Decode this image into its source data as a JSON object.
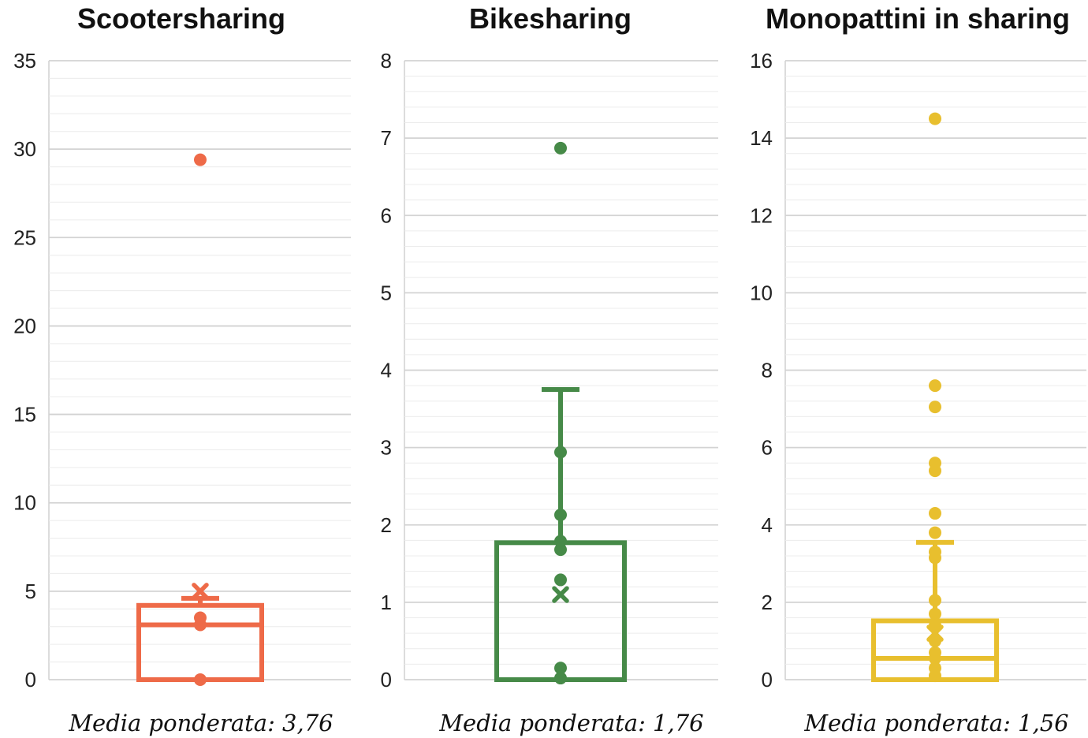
{
  "chart_data": [
    {
      "type": "box",
      "title": "Scootersharing",
      "color": "#ee6a48",
      "ylim": [
        0,
        35
      ],
      "ytick_step": 5,
      "yticks": [
        "0",
        "5",
        "10",
        "15",
        "20",
        "25",
        "30",
        "35"
      ],
      "box": {
        "min": 0,
        "q1": 0,
        "median": 3.1,
        "q3": 4.2,
        "max": 4.6,
        "mean": 5.0
      },
      "points": [
        29.4,
        3.5,
        3.1,
        0
      ],
      "caption": "Media ponderata: 3,76"
    },
    {
      "type": "box",
      "title": "Bikesharing",
      "color": "#468a48",
      "ylim": [
        0,
        8
      ],
      "ytick_step": 1,
      "yticks": [
        "0",
        "1",
        "2",
        "3",
        "4",
        "5",
        "6",
        "7",
        "8"
      ],
      "box": {
        "min": 0,
        "q1": 0,
        "median": 0,
        "q3": 1.77,
        "max": 3.75,
        "mean": 1.1
      },
      "points": [
        6.87,
        2.94,
        2.13,
        1.79,
        1.68,
        1.29,
        0.15,
        0.02
      ],
      "caption": "Media ponderata: 1,76"
    },
    {
      "type": "box",
      "title": "Monopattini in sharing",
      "color": "#e8bf2e",
      "ylim": [
        0,
        16
      ],
      "ytick_step": 2,
      "yticks": [
        "0",
        "2",
        "4",
        "6",
        "8",
        "10",
        "12",
        "14",
        "16"
      ],
      "box": {
        "min": 0,
        "q1": 0,
        "median": 0.55,
        "q3": 1.52,
        "max": 3.55,
        "mean": 1.2
      },
      "points": [
        14.5,
        7.6,
        7.05,
        5.6,
        5.4,
        4.3,
        3.8,
        3.3,
        3.15,
        2.05,
        1.7,
        1.4,
        1.0,
        0.7,
        0.55,
        0.3,
        0.1
      ],
      "caption": "Media ponderata: 1,56"
    }
  ]
}
